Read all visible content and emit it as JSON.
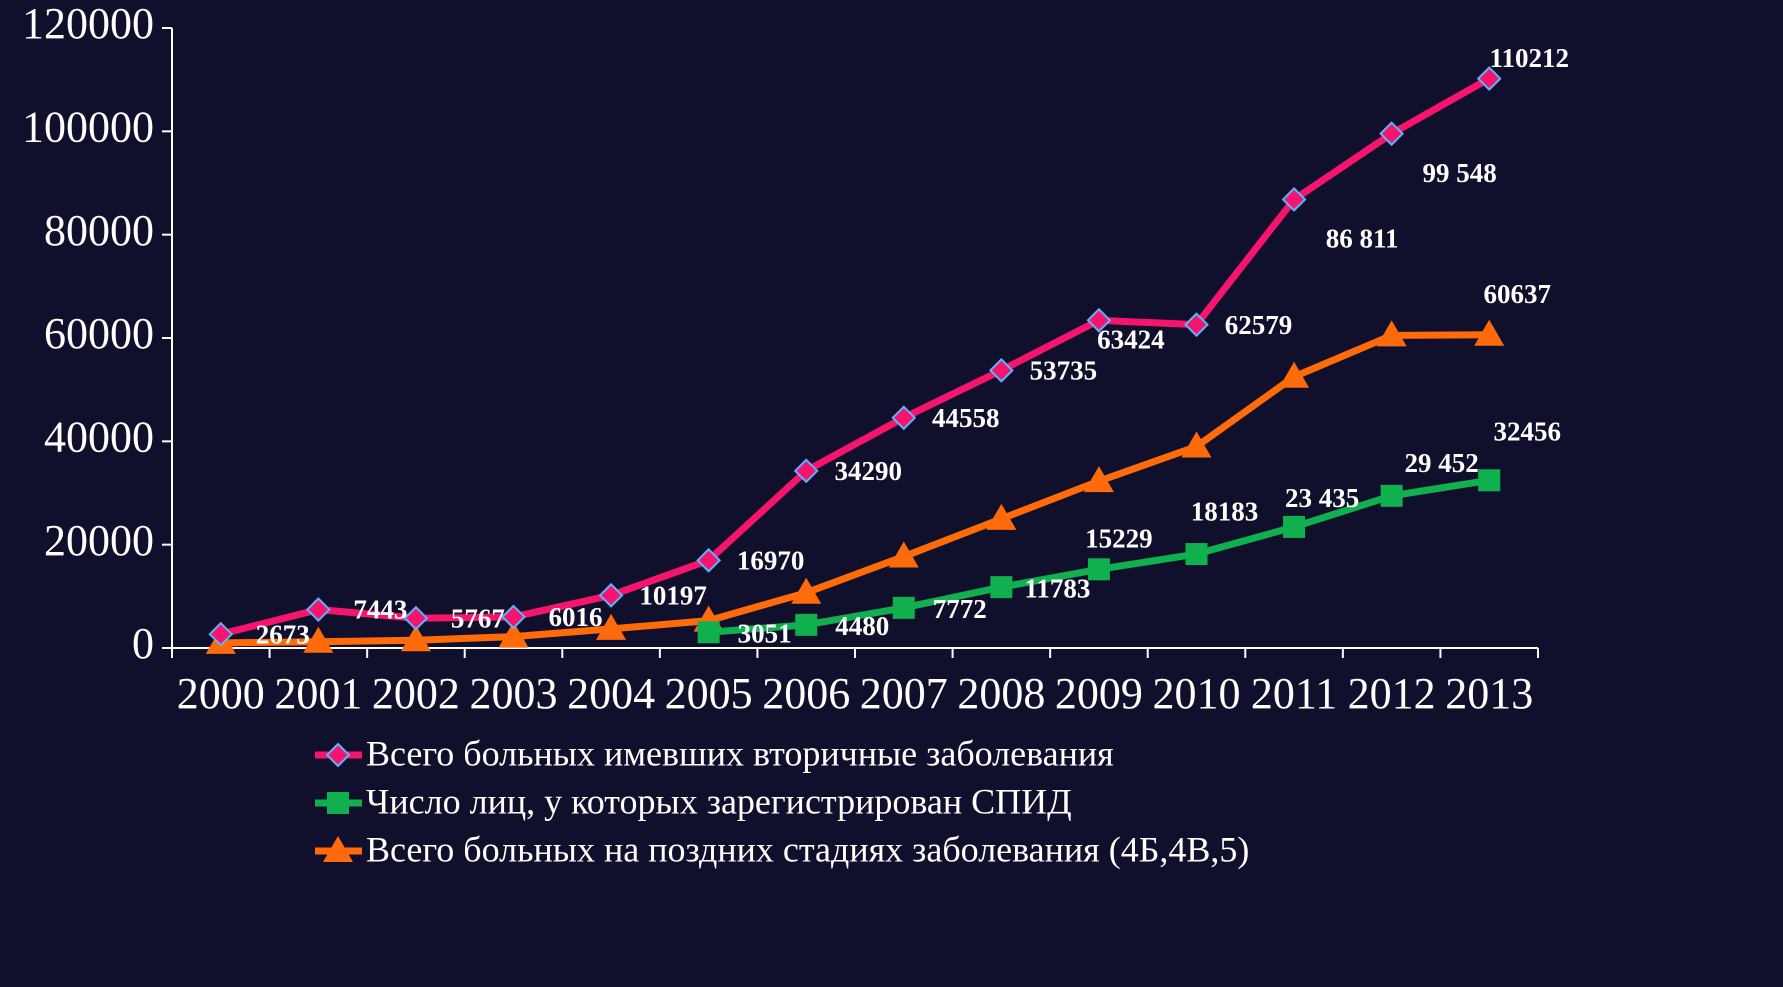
{
  "chart_data": {
    "type": "line",
    "categories": [
      "2000",
      "2001",
      "2002",
      "2003",
      "2004",
      "2005",
      "2006",
      "2007",
      "2008",
      "2009",
      "2010",
      "2011",
      "2012",
      "2013"
    ],
    "ylim": [
      0,
      120000
    ],
    "yticks": [
      0,
      20000,
      40000,
      60000,
      80000,
      100000,
      120000
    ],
    "series": [
      {
        "name": "Всего больных имевших вторичные заболевания",
        "color": "#f5156c",
        "marker": "diamond",
        "values": [
          2673,
          7443,
          5767,
          6016,
          10197,
          16970,
          34290,
          44558,
          53735,
          63424,
          62579,
          86811,
          99548,
          110212
        ],
        "value_labels": [
          "2673",
          "7443",
          "5767",
          "6016",
          "10197",
          "16970",
          "34290",
          "44558",
          "53735",
          "63424",
          "62579",
          "86 811",
          "99 548",
          "110212"
        ]
      },
      {
        "name": "Число лиц, у которых зарегистрирован СПИД",
        "color": "#10b04e",
        "marker": "square",
        "values": [
          null,
          null,
          null,
          null,
          null,
          3051,
          4480,
          7772,
          11783,
          15229,
          18183,
          23435,
          29452,
          32456
        ],
        "value_labels": [
          null,
          null,
          null,
          null,
          null,
          "3051",
          "4480",
          "7772",
          "11783",
          "15229",
          "18183",
          "23 435",
          "29 452",
          "32456"
        ]
      },
      {
        "name": "Всего больных на поздних стадиях заболевания (4Б,4В,5)",
        "color": "#ff6a0a",
        "marker": "triangle",
        "values": [
          1000,
          1200,
          1500,
          2200,
          3700,
          5300,
          10700,
          17700,
          25000,
          32300,
          39000,
          52500,
          60500,
          60637
        ],
        "value_labels": [
          null,
          null,
          null,
          null,
          null,
          null,
          null,
          null,
          null,
          null,
          null,
          null,
          null,
          "60637"
        ]
      }
    ]
  }
}
